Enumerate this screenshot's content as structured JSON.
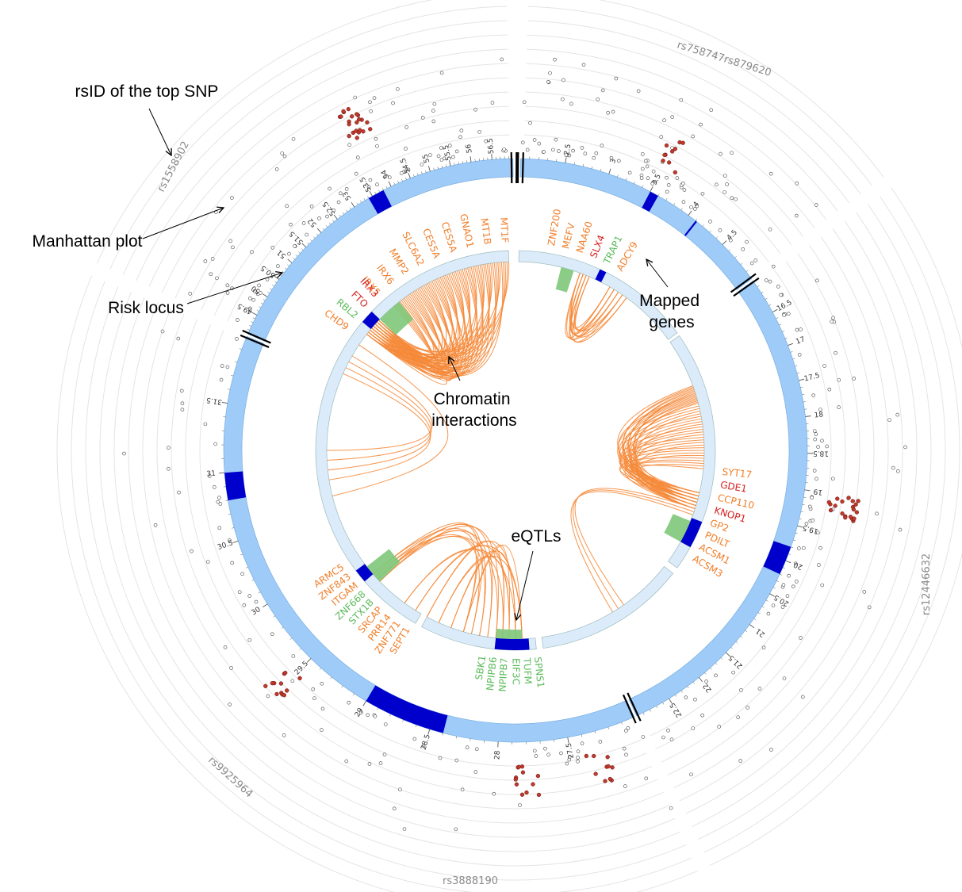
{
  "annotations": {
    "top_snp": "rsID of the top SNP",
    "manhattan": "Manhattan plot",
    "risk_locus": "Risk locus",
    "mapped_genes_line1": "Mapped",
    "mapped_genes_line2": "genes",
    "chromatin_line1": "Chromatin",
    "chromatin_line2": "interactions",
    "eqtls": "eQTLs"
  },
  "snp_ids": [
    "rs1558902",
    "rs758747rs879620",
    "rs12446632",
    "rs3888190",
    "rs9925964"
  ],
  "colors": {
    "ideogram": "#9ecbf7",
    "risk_locus": "#0000cc",
    "inner_ring": "#dcebfa",
    "chromatin": "#f58a3a",
    "eqtl": "#7ec87a",
    "gene_orange": "#f07f2a",
    "gene_red": "#d62020",
    "gene_green": "#5cbb5c"
  },
  "segments": [
    {
      "start": 2.0,
      "end": 5.0,
      "loci": [
        [
          3.5,
          3.6
        ],
        [
          4.1,
          4.12
        ]
      ],
      "major_ticks": [
        "2.5",
        "3",
        "3.5",
        "4",
        "4.5"
      ]
    },
    {
      "start": 16.0,
      "end": 23.0,
      "loci": [
        [
          19.8,
          20.2
        ]
      ],
      "major_ticks": [
        "16.5",
        "17",
        "17.5",
        "18",
        "18.5",
        "19",
        "19.5",
        "20",
        "20.5",
        "21",
        "21.5",
        "22",
        "22.5"
      ]
    },
    {
      "start": 27.0,
      "end": 32.0,
      "loci": [
        [
          28.4,
          29.0
        ],
        [
          30.8,
          31.0
        ]
      ],
      "major_ticks": [
        "27.5",
        "28",
        "28.5",
        "29",
        "29.5",
        "30",
        "30.5",
        "31",
        "31.5"
      ]
    },
    {
      "start": 49.0,
      "end": 57.0,
      "loci": [
        [
          53.4,
          53.8
        ]
      ],
      "major_ticks": [
        "49.5",
        "50",
        "50.5",
        "51",
        "51.5",
        "52",
        "52.5",
        "53",
        "53.5",
        "54",
        "54.5",
        "55",
        "55.5",
        "56",
        "56.5"
      ]
    }
  ],
  "gene_groups": [
    {
      "genes": [
        {
          "name": "MT1F",
          "color": "orange"
        },
        {
          "name": "MT1B",
          "color": "orange"
        },
        {
          "name": "GNAO1",
          "color": "orange"
        },
        {
          "name": "CES5A",
          "color": "orange"
        },
        {
          "name": "CES5A",
          "color": "orange"
        },
        {
          "name": "SLC6A2",
          "color": "orange"
        },
        {
          "name": "MMP2",
          "color": "orange"
        },
        {
          "name": "IRX6",
          "color": "orange"
        },
        {
          "name": "IRX5",
          "color": "orange"
        }
      ]
    },
    {
      "genes": [
        {
          "name": "IRX3",
          "color": "red"
        },
        {
          "name": "FTO",
          "color": "red"
        },
        {
          "name": "RBL2",
          "color": "green"
        },
        {
          "name": "CHD9",
          "color": "orange"
        }
      ]
    },
    {
      "genes": [
        {
          "name": "ZNF200",
          "color": "orange"
        },
        {
          "name": "MEFV",
          "color": "orange"
        },
        {
          "name": "NAA60",
          "color": "orange"
        },
        {
          "name": "SLX4",
          "color": "red"
        },
        {
          "name": "TRAP1",
          "color": "green"
        },
        {
          "name": "ADCY9",
          "color": "orange"
        }
      ]
    },
    {
      "genes": [
        {
          "name": "SYT17",
          "color": "orange"
        },
        {
          "name": "GDE1",
          "color": "red"
        },
        {
          "name": "CCP110",
          "color": "orange"
        },
        {
          "name": "KNOP1",
          "color": "red"
        },
        {
          "name": "GP2",
          "color": "orange"
        },
        {
          "name": "PDILT",
          "color": "orange"
        },
        {
          "name": "ACSM1",
          "color": "orange"
        },
        {
          "name": "ACSM3",
          "color": "orange"
        }
      ]
    },
    {
      "genes": [
        {
          "name": "SPNS1",
          "color": "green"
        },
        {
          "name": "TUFM",
          "color": "green"
        },
        {
          "name": "EIF3C",
          "color": "green"
        },
        {
          "name": "NPIPB7",
          "color": "green"
        },
        {
          "name": "NPIPB6",
          "color": "green"
        },
        {
          "name": "SBK1",
          "color": "green"
        }
      ]
    },
    {
      "genes": [
        {
          "name": "ARMC5",
          "color": "orange"
        },
        {
          "name": "ZNF843",
          "color": "orange"
        },
        {
          "name": "ITGAM",
          "color": "orange"
        },
        {
          "name": "ZNF668",
          "color": "green"
        },
        {
          "name": "STX1B",
          "color": "green"
        },
        {
          "name": "SRCAP",
          "color": "orange"
        },
        {
          "name": "PRR14",
          "color": "orange"
        },
        {
          "name": "ZNF771",
          "color": "orange"
        },
        {
          "name": "SEPT1",
          "color": "orange"
        }
      ]
    }
  ]
}
